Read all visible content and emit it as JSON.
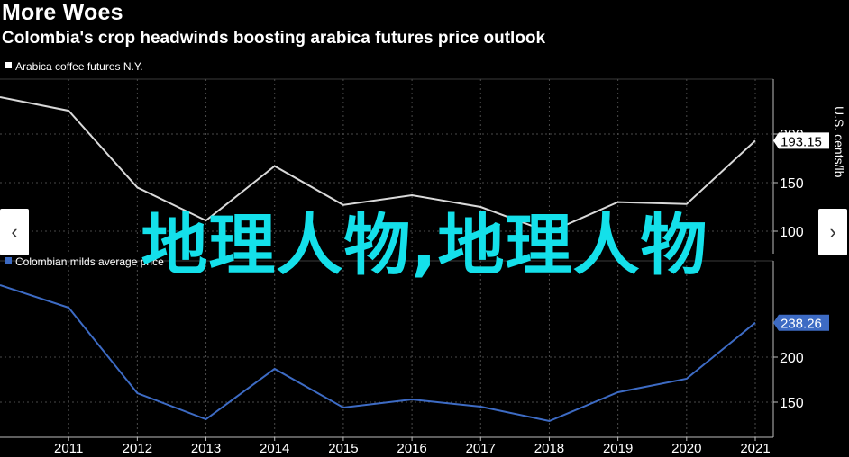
{
  "header": {
    "title": "More Woes",
    "subtitle": "Colombia's crop headwinds boosting arabica futures price outlook"
  },
  "overlay_text": "地理人物,地理人物",
  "nav": {
    "prev": "‹",
    "next": "›"
  },
  "colors": {
    "background": "#000000",
    "arabica_line": "#d9d9d9",
    "colombian_line": "#3d6bc4",
    "grid": "#4a4a4a",
    "overlay_text": "#14e0ea"
  },
  "chart_data": [
    {
      "type": "line",
      "legend": "Arabica coffee futures N.Y.",
      "ylabel": "U.S. cents/lb",
      "ylim": [
        75,
        240
      ],
      "yticks": [
        100,
        150,
        200
      ],
      "x": [
        2010,
        2011,
        2012,
        2013,
        2014,
        2015,
        2016,
        2017,
        2018,
        2019,
        2020,
        2021
      ],
      "values": [
        238,
        224,
        145,
        111,
        167,
        127,
        137,
        125,
        99,
        130,
        128,
        193.15
      ],
      "last_value_label": "193.15",
      "grid": true
    },
    {
      "type": "line",
      "legend": "Colombian milds average price",
      "ylim": [
        125,
        260
      ],
      "yticks": [
        150,
        200
      ],
      "x": [
        2010,
        2011,
        2012,
        2013,
        2014,
        2015,
        2016,
        2017,
        2018,
        2019,
        2020,
        2021
      ],
      "values": [
        280,
        255,
        160,
        131,
        187,
        144,
        153,
        145,
        129,
        161,
        176,
        238.26
      ],
      "last_value_label": "238.26",
      "grid": true
    }
  ],
  "x_axis": {
    "ticks": [
      "2011",
      "2012",
      "2013",
      "2014",
      "2015",
      "2016",
      "2017",
      "2018",
      "2019",
      "2020",
      "2021"
    ]
  }
}
